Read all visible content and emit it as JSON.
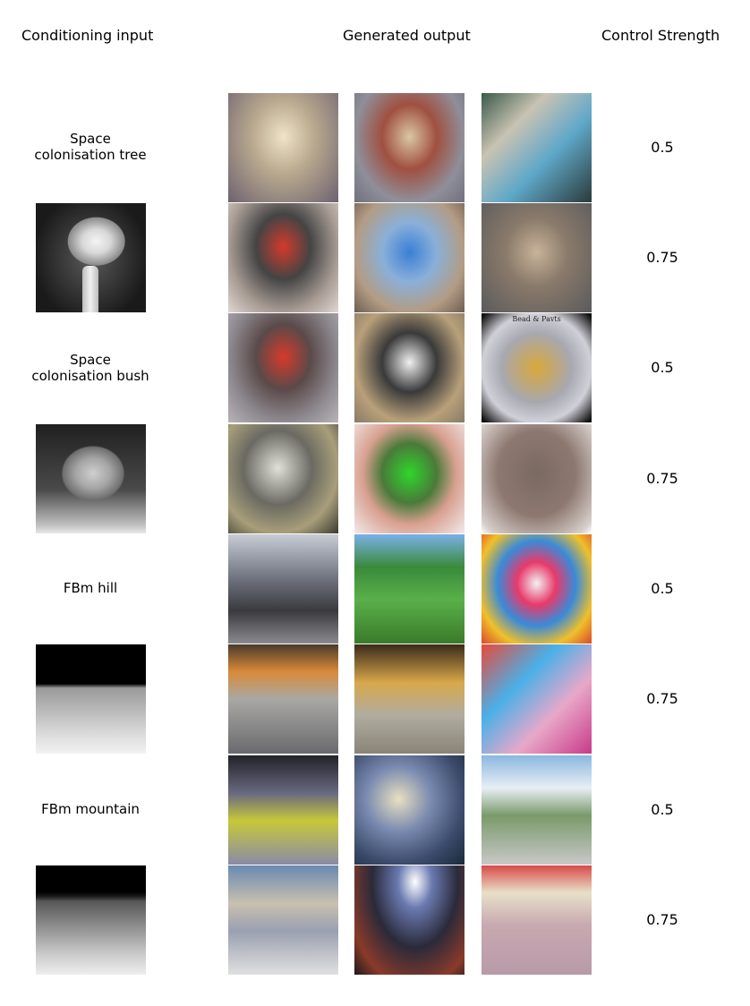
{
  "headers": {
    "conditioning": "Conditioning input",
    "generated": "Generated output",
    "strength": "Control Strength"
  },
  "rows": [
    {
      "label_lines": [
        "Space",
        "colonisation tree"
      ],
      "strength": "0.5"
    },
    {
      "label_lines": [],
      "depth_map": "depth-map-tree",
      "strength": "0.75"
    },
    {
      "label_lines": [
        "Space",
        "colonisation bush"
      ],
      "strength": "0.5"
    },
    {
      "label_lines": [],
      "depth_map": "depth-map-bush",
      "strength": "0.75"
    },
    {
      "label_lines": [
        "FBm hill"
      ],
      "strength": "0.5"
    },
    {
      "label_lines": [],
      "depth_map": "depth-map-hill",
      "strength": "0.75"
    },
    {
      "label_lines": [
        "FBm mountain"
      ],
      "strength": "0.5"
    },
    {
      "label_lines": [],
      "depth_map": "depth-map-mountain",
      "strength": "0.75"
    }
  ],
  "bush_frame_text": "Bead & Pavts"
}
